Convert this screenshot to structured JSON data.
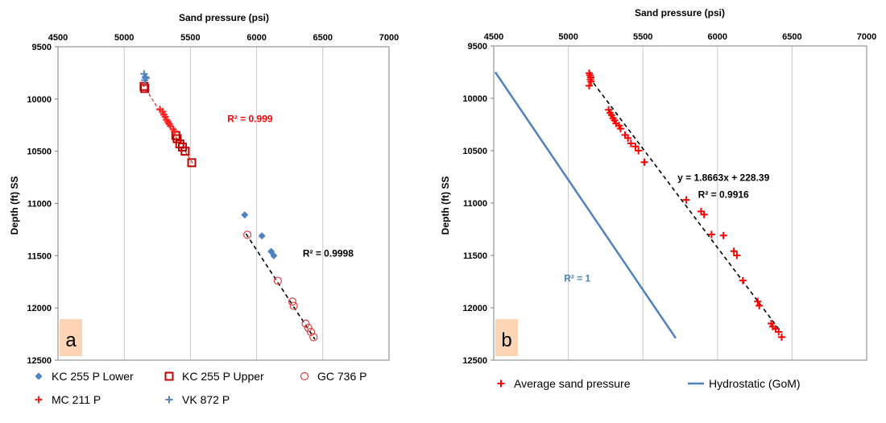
{
  "chart_data": [
    {
      "type": "scatter",
      "panel_label": "a",
      "xlabel": "Sand pressure (psi)",
      "ylabel": "Depth (ft) SS",
      "xlim": [
        4500,
        7000
      ],
      "ylim": [
        9500,
        12500
      ],
      "y_inverted": true,
      "x_axis_position": "top",
      "x_ticks": [
        4500,
        5000,
        5500,
        6000,
        6500,
        7000
      ],
      "y_ticks": [
        9500,
        10000,
        10500,
        11000,
        11500,
        12000,
        12500
      ],
      "grid": "vertical",
      "legend_position": "bottom",
      "series": [
        {
          "name": "KC 255  P Lower",
          "marker": "diamond",
          "color": "#4f81bd",
          "x": [
            5910,
            6040,
            6110,
            6130
          ],
          "y": [
            11110,
            11310,
            11460,
            11500
          ]
        },
        {
          "name": "KC 255 P Upper",
          "marker": "square-open",
          "color": "#c00000",
          "x": [
            5150,
            5155,
            5390,
            5400,
            5420,
            5440,
            5460,
            5510
          ],
          "y": [
            9880,
            9900,
            10350,
            10380,
            10430,
            10460,
            10500,
            10610
          ]
        },
        {
          "name": "GC 736 P",
          "marker": "circle-open",
          "color": "#e04040",
          "x": [
            5930,
            6160,
            6270,
            6280,
            6370,
            6390,
            6410,
            6430
          ],
          "y": [
            11300,
            11740,
            11940,
            11980,
            12150,
            12190,
            12230,
            12280
          ]
        },
        {
          "name": "MC 211 P",
          "marker": "plus",
          "color": "#ff2020",
          "x": [
            5270,
            5290,
            5300,
            5310,
            5320,
            5330,
            5340,
            5350,
            5370,
            5380
          ],
          "y": [
            10100,
            10120,
            10150,
            10170,
            10200,
            10220,
            10240,
            10260,
            10290,
            10310
          ]
        },
        {
          "name": "VK 872 P",
          "marker": "plus",
          "color": "#4f81bd",
          "x": [
            5150,
            5160,
            5155,
            5165
          ],
          "y": [
            9760,
            9790,
            9820,
            9800
          ]
        }
      ],
      "trendlines": [
        {
          "color": "#c00000",
          "x": [
            5140,
            5520
          ],
          "y": [
            9860,
            10620
          ]
        },
        {
          "color": "#000000",
          "x": [
            5920,
            6440
          ],
          "y": [
            11290,
            12300
          ]
        }
      ],
      "annotations": [
        {
          "text": "R² = 0.999",
          "color": "#ff0000",
          "x": 5950,
          "y": 10220
        },
        {
          "text": "R² = 0.9998",
          "color": "#000000",
          "x": 6540,
          "y": 11510
        }
      ]
    },
    {
      "type": "scatter",
      "panel_label": "b",
      "xlabel": "Sand pressure (psi)",
      "ylabel": "Depth (ft) SS",
      "xlim": [
        4500,
        7000
      ],
      "ylim": [
        9500,
        12500
      ],
      "y_inverted": true,
      "x_axis_position": "top",
      "x_ticks": [
        4500,
        5000,
        5500,
        6000,
        6500,
        7000
      ],
      "y_ticks": [
        9500,
        10000,
        10500,
        11000,
        11500,
        12000,
        12500
      ],
      "grid": "vertical",
      "legend_position": "bottom",
      "series": [
        {
          "name": "Average sand pressure",
          "marker": "plus",
          "color": "#ff0000",
          "x": [
            5140,
            5145,
            5150,
            5148,
            5152,
            5140,
            5270,
            5280,
            5290,
            5300,
            5310,
            5320,
            5340,
            5350,
            5380,
            5400,
            5420,
            5450,
            5470,
            5510,
            5790,
            5890,
            5910,
            5960,
            6040,
            6110,
            6130,
            6170,
            6270,
            6280,
            6360,
            6370,
            6390,
            6410,
            6430
          ],
          "y": [
            9760,
            9780,
            9800,
            9820,
            9840,
            9880,
            10110,
            10140,
            10160,
            10190,
            10210,
            10240,
            10260,
            10290,
            10350,
            10380,
            10430,
            10460,
            10500,
            10610,
            10970,
            11080,
            11110,
            11300,
            11310,
            11460,
            11500,
            11740,
            11940,
            11980,
            12150,
            12180,
            12200,
            12230,
            12280
          ]
        },
        {
          "name": "Hydrostatic (GoM)",
          "type": "line",
          "color": "#4f81bd",
          "x": [
            4510,
            5720
          ],
          "y": [
            9750,
            12290
          ]
        }
      ],
      "trendlines": [
        {
          "color": "#000000",
          "x": [
            5140,
            6420
          ],
          "y": [
            9800,
            12220
          ]
        }
      ],
      "annotations": [
        {
          "text": "y = 1.8663x + 228.39",
          "color": "#000000",
          "x": 6040,
          "y": 10790
        },
        {
          "text": "R² = 0.9916",
          "color": "#000000",
          "x": 6040,
          "y": 10950
        },
        {
          "text": "R² = 1",
          "color": "#4f81bd",
          "x": 5060,
          "y": 11750
        }
      ]
    }
  ],
  "colors": {
    "panel_label_bg": "#fbd5b5",
    "grid": "#c8c8c8",
    "axis": "#808080"
  }
}
